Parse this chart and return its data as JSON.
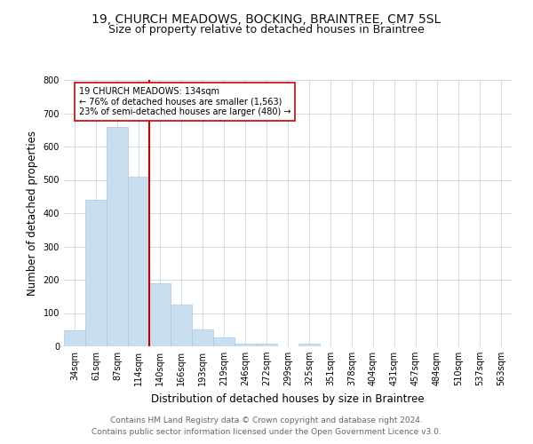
{
  "title_line1": "19, CHURCH MEADOWS, BOCKING, BRAINTREE, CM7 5SL",
  "title_line2": "Size of property relative to detached houses in Braintree",
  "xlabel": "Distribution of detached houses by size in Braintree",
  "ylabel": "Number of detached properties",
  "categories": [
    "34sqm",
    "61sqm",
    "87sqm",
    "114sqm",
    "140sqm",
    "166sqm",
    "193sqm",
    "219sqm",
    "246sqm",
    "272sqm",
    "299sqm",
    "325sqm",
    "351sqm",
    "378sqm",
    "404sqm",
    "431sqm",
    "457sqm",
    "484sqm",
    "510sqm",
    "537sqm",
    "563sqm"
  ],
  "values": [
    47,
    440,
    660,
    510,
    190,
    125,
    50,
    28,
    8,
    8,
    0,
    8,
    0,
    0,
    0,
    0,
    0,
    0,
    0,
    0,
    0
  ],
  "bar_color": "#c9dff0",
  "bar_edge_color": "#a8c8e8",
  "property_line_color": "#cc0000",
  "annotation_text": "19 CHURCH MEADOWS: 134sqm\n← 76% of detached houses are smaller (1,563)\n23% of semi-detached houses are larger (480) →",
  "annotation_box_color": "#ffffff",
  "annotation_box_edge_color": "#cc0000",
  "ylim": [
    0,
    800
  ],
  "yticks": [
    0,
    100,
    200,
    300,
    400,
    500,
    600,
    700,
    800
  ],
  "footer_line1": "Contains HM Land Registry data © Crown copyright and database right 2024.",
  "footer_line2": "Contains public sector information licensed under the Open Government Licence v3.0.",
  "background_color": "#ffffff",
  "grid_color": "#c8d8e8",
  "title_fontsize": 10,
  "subtitle_fontsize": 9,
  "label_fontsize": 8.5,
  "tick_fontsize": 7,
  "footer_fontsize": 6.5
}
